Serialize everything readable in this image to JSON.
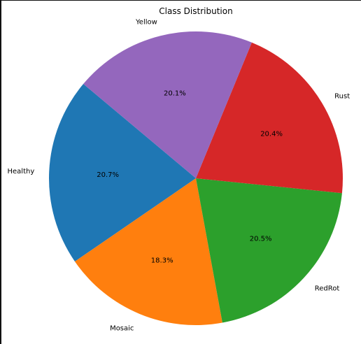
{
  "chart_data": {
    "type": "pie",
    "title": "Class Distribution",
    "start_angle_deg": 140,
    "direction": "counterclockwise",
    "slices": [
      {
        "label": "Healthy",
        "value": 20.7,
        "pct_label": "20.7%",
        "color": "#1f77b4"
      },
      {
        "label": "Mosaic",
        "value": 18.3,
        "pct_label": "18.3%",
        "color": "#ff7f0e"
      },
      {
        "label": "RedRot",
        "value": 20.5,
        "pct_label": "20.5%",
        "color": "#2ca02c"
      },
      {
        "label": "Rust",
        "value": 20.4,
        "pct_label": "20.4%",
        "color": "#d62728"
      },
      {
        "label": "Yellow",
        "value": 20.1,
        "pct_label": "20.1%",
        "color": "#9467bd"
      }
    ]
  }
}
